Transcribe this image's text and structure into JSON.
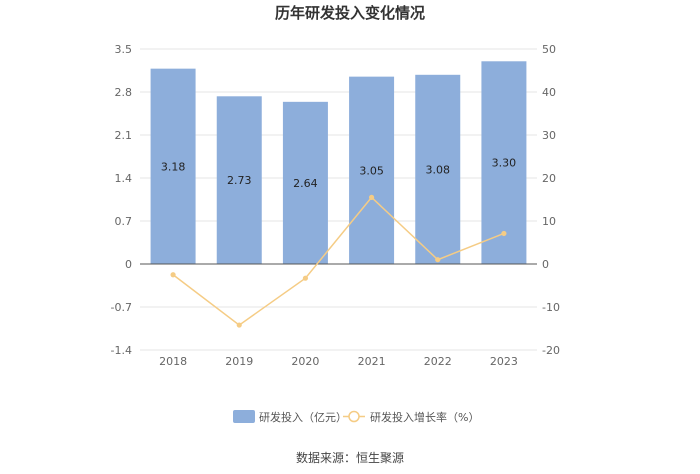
{
  "chart_data": {
    "type": "bar",
    "title": "历年研发投入变化情况",
    "categories": [
      "2018",
      "2019",
      "2020",
      "2021",
      "2022",
      "2023"
    ],
    "series": [
      {
        "name": "研发投入（亿元）",
        "type": "bar",
        "axis": "left",
        "values": [
          3.18,
          2.73,
          2.64,
          3.05,
          3.08,
          3.3
        ],
        "labels": [
          "3.18",
          "2.73",
          "2.64",
          "3.05",
          "3.08",
          "3.30"
        ],
        "color": "#8DAEDB"
      },
      {
        "name": "研发投入增长率（%）",
        "type": "line",
        "axis": "right",
        "values": [
          -2.5,
          -14.2,
          -3.3,
          15.5,
          1.0,
          7.1
        ],
        "color": "#F5CC85"
      }
    ],
    "y_left": {
      "ticks": [
        "3.5",
        "2.8",
        "2.1",
        "1.4",
        "0.7",
        "0",
        "-0.7",
        "-1.4"
      ],
      "range": [
        -1.4,
        3.5
      ]
    },
    "y_right": {
      "ticks": [
        "50",
        "40",
        "30",
        "20",
        "10",
        "0",
        "-10",
        "-20"
      ],
      "range": [
        -20,
        50
      ]
    },
    "grid": true,
    "legend": "bottom-center",
    "source": "数据来源：恒生聚源"
  }
}
